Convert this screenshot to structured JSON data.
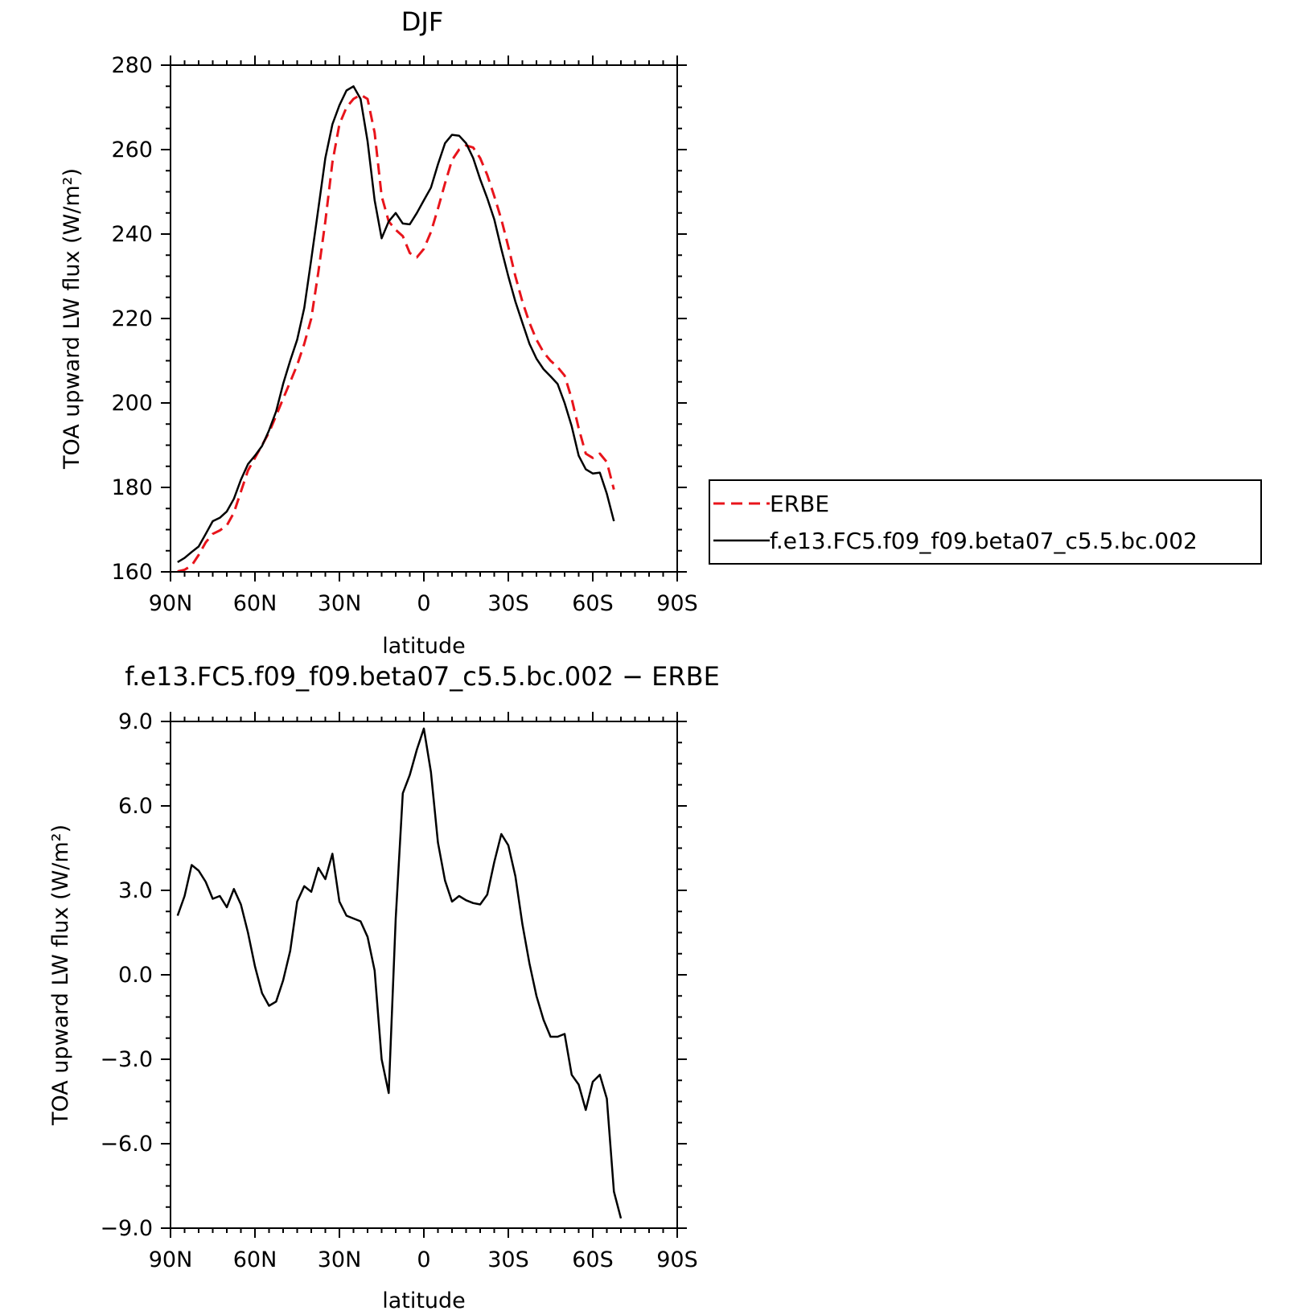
{
  "chart_data": [
    {
      "type": "line",
      "title": "DJF",
      "xlabel": "latitude",
      "ylabel": "TOA upward LW flux (W/m²)",
      "xlim": [
        90,
        -90
      ],
      "ylim": [
        160,
        280
      ],
      "xticks": [
        {
          "value": 90,
          "label": "90N"
        },
        {
          "value": 60,
          "label": "60N"
        },
        {
          "value": 30,
          "label": "30N"
        },
        {
          "value": 0,
          "label": "0"
        },
        {
          "value": -30,
          "label": "30S"
        },
        {
          "value": -60,
          "label": "60S"
        },
        {
          "value": -90,
          "label": "90S"
        }
      ],
      "yticks": [
        "160",
        "180",
        "200",
        "220",
        "240",
        "260",
        "280"
      ],
      "legend_position": "right",
      "series": [
        {
          "name": "ERBE",
          "color": "#e8141b",
          "dash": "dashed",
          "points": [
            [
              87.5,
              160.1
            ],
            [
              85,
              160.5
            ],
            [
              82.5,
              161.5
            ],
            [
              80,
              164
            ],
            [
              77.5,
              167
            ],
            [
              75,
              169
            ],
            [
              72.5,
              169.8
            ],
            [
              70,
              171
            ],
            [
              67.5,
              174
            ],
            [
              65,
              179
            ],
            [
              62.5,
              184
            ],
            [
              60,
              187
            ],
            [
              57.5,
              190
            ],
            [
              55,
              193
            ],
            [
              52.5,
              197
            ],
            [
              50,
              201
            ],
            [
              47.5,
              205
            ],
            [
              45,
              209
            ],
            [
              42.5,
              214
            ],
            [
              40,
              220
            ],
            [
              37.5,
              231
            ],
            [
              35,
              243
            ],
            [
              32.5,
              257
            ],
            [
              30,
              266
            ],
            [
              27.5,
              270
            ],
            [
              25,
              272
            ],
            [
              22.5,
              273
            ],
            [
              20,
              272
            ],
            [
              17.5,
              264
            ],
            [
              15,
              249
            ],
            [
              12.5,
              243
            ],
            [
              10,
              241
            ],
            [
              7.5,
              239.5
            ],
            [
              5,
              235.5
            ],
            [
              2.5,
              234.5
            ],
            [
              0,
              236.5
            ],
            [
              -2.5,
              240.5
            ],
            [
              -5,
              246
            ],
            [
              -7.5,
              252
            ],
            [
              -10,
              257.5
            ],
            [
              -12.5,
              260
            ],
            [
              -15,
              261
            ],
            [
              -17.5,
              260.5
            ],
            [
              -20,
              258
            ],
            [
              -22.5,
              254
            ],
            [
              -25,
              249
            ],
            [
              -27.5,
              243.5
            ],
            [
              -30,
              237
            ],
            [
              -32.5,
              230
            ],
            [
              -35,
              224
            ],
            [
              -37.5,
              219
            ],
            [
              -40,
              215
            ],
            [
              -42.5,
              212
            ],
            [
              -45,
              210
            ],
            [
              -47.5,
              208.5
            ],
            [
              -50,
              206.5
            ],
            [
              -52.5,
              201
            ],
            [
              -55,
              194
            ],
            [
              -57.5,
              188
            ],
            [
              -60,
              187
            ],
            [
              -62.5,
              188
            ],
            [
              -65,
              186
            ],
            [
              -67.5,
              179.5
            ]
          ]
        },
        {
          "name": "f.e13.FC5.f09_f09.beta07_c5.5.bc.002",
          "color": "#000000",
          "dash": "solid",
          "points": [
            [
              87.5,
              162.3
            ],
            [
              85,
              163.3
            ],
            [
              82.5,
              164.7
            ],
            [
              80,
              166
            ],
            [
              77.5,
              169
            ],
            [
              75,
              172
            ],
            [
              72.5,
              172.8
            ],
            [
              70,
              174.3
            ],
            [
              67.5,
              177.3
            ],
            [
              65,
              181.8
            ],
            [
              62.5,
              185.5
            ],
            [
              60,
              187.5
            ],
            [
              57.5,
              189.8
            ],
            [
              55,
              193.5
            ],
            [
              52.5,
              198
            ],
            [
              50,
              204.5
            ],
            [
              47.5,
              210
            ],
            [
              45,
              215
            ],
            [
              42.5,
              222.5
            ],
            [
              40,
              234
            ],
            [
              37.5,
              246
            ],
            [
              35,
              258
            ],
            [
              32.5,
              266
            ],
            [
              30,
              270.5
            ],
            [
              27.5,
              274
            ],
            [
              25,
              275
            ],
            [
              22.5,
              272
            ],
            [
              20,
              262
            ],
            [
              17.5,
              248
            ],
            [
              15,
              239
            ],
            [
              12.5,
              243
            ],
            [
              10,
              245
            ],
            [
              7.5,
              242.5
            ],
            [
              5,
              242.3
            ],
            [
              2.5,
              245
            ],
            [
              0,
              248
            ],
            [
              -2.5,
              251
            ],
            [
              -5,
              256.5
            ],
            [
              -7.5,
              261.5
            ],
            [
              -10,
              263.5
            ],
            [
              -12.5,
              263.3
            ],
            [
              -15,
              261.5
            ],
            [
              -17.5,
              258
            ],
            [
              -20,
              253
            ],
            [
              -22.5,
              248.5
            ],
            [
              -25,
              243.5
            ],
            [
              -27.5,
              236.5
            ],
            [
              -30,
              230
            ],
            [
              -32.5,
              224
            ],
            [
              -35,
              219
            ],
            [
              -37.5,
              214
            ],
            [
              -40,
              210.5
            ],
            [
              -42.5,
              208
            ],
            [
              -45,
              206.3
            ],
            [
              -47.5,
              204.5
            ],
            [
              -50,
              200
            ],
            [
              -52.5,
              194.5
            ],
            [
              -55,
              187.5
            ],
            [
              -57.5,
              184.3
            ],
            [
              -60,
              183.3
            ],
            [
              -62.5,
              183.5
            ],
            [
              -65,
              178.5
            ],
            [
              -67.5,
              172
            ]
          ]
        }
      ]
    },
    {
      "type": "line",
      "title": "f.e13.FC5.f09_f09.beta07_c5.5.bc.002 − ERBE",
      "xlabel": "latitude",
      "ylabel": "TOA upward LW flux (W/m²)",
      "xlim": [
        90,
        -90
      ],
      "ylim": [
        -9,
        9
      ],
      "xticks": [
        {
          "value": 90,
          "label": "90N"
        },
        {
          "value": 60,
          "label": "60N"
        },
        {
          "value": 30,
          "label": "30N"
        },
        {
          "value": 0,
          "label": "0"
        },
        {
          "value": -30,
          "label": "30S"
        },
        {
          "value": -60,
          "label": "60S"
        },
        {
          "value": -90,
          "label": "90S"
        }
      ],
      "yticks": [
        "−9.0",
        "−6.0",
        "−3.0",
        "0.0",
        "3.0",
        "6.0",
        "9.0"
      ],
      "series": [
        {
          "color": "#000000",
          "dash": "solid",
          "points": [
            [
              87.5,
              2.1
            ],
            [
              85,
              2.8
            ],
            [
              82.5,
              3.9
            ],
            [
              80,
              3.7
            ],
            [
              77.5,
              3.3
            ],
            [
              75,
              2.7
            ],
            [
              72.5,
              2.8
            ],
            [
              70,
              2.4
            ],
            [
              67.5,
              3.05
            ],
            [
              65,
              2.5
            ],
            [
              62.5,
              1.5
            ],
            [
              60,
              0.3
            ],
            [
              57.5,
              -0.65
            ],
            [
              55,
              -1.1
            ],
            [
              52.5,
              -0.95
            ],
            [
              50,
              -0.2
            ],
            [
              47.5,
              0.85
            ],
            [
              45,
              2.6
            ],
            [
              42.5,
              3.15
            ],
            [
              40,
              2.95
            ],
            [
              37.5,
              3.8
            ],
            [
              35,
              3.4
            ],
            [
              32.5,
              4.3
            ],
            [
              30,
              2.6
            ],
            [
              27.5,
              2.1
            ],
            [
              25,
              2.0
            ],
            [
              22.5,
              1.9
            ],
            [
              20,
              1.35
            ],
            [
              17.5,
              0.15
            ],
            [
              15,
              -3.0
            ],
            [
              12.5,
              -4.2
            ],
            [
              10,
              2.0
            ],
            [
              7.5,
              6.45
            ],
            [
              5,
              7.1
            ],
            [
              2.5,
              8.0
            ],
            [
              0,
              8.75
            ],
            [
              -2.5,
              7.2
            ],
            [
              -5,
              4.7
            ],
            [
              -7.5,
              3.35
            ],
            [
              -10,
              2.6
            ],
            [
              -12.5,
              2.8
            ],
            [
              -15,
              2.65
            ],
            [
              -17.5,
              2.55
            ],
            [
              -20,
              2.5
            ],
            [
              -22.5,
              2.85
            ],
            [
              -25,
              4.0
            ],
            [
              -27.5,
              5.0
            ],
            [
              -30,
              4.6
            ],
            [
              -32.5,
              3.5
            ],
            [
              -35,
              1.8
            ],
            [
              -37.5,
              0.4
            ],
            [
              -40,
              -0.75
            ],
            [
              -42.5,
              -1.6
            ],
            [
              -45,
              -2.2
            ],
            [
              -47.5,
              -2.2
            ],
            [
              -50,
              -2.1
            ],
            [
              -52.5,
              -3.55
            ],
            [
              -55,
              -3.9
            ],
            [
              -57.5,
              -4.8
            ],
            [
              -60,
              -3.8
            ],
            [
              -62.5,
              -3.55
            ],
            [
              -65,
              -4.4
            ],
            [
              -67.5,
              -7.7
            ],
            [
              -70,
              -8.65
            ]
          ]
        }
      ]
    }
  ]
}
